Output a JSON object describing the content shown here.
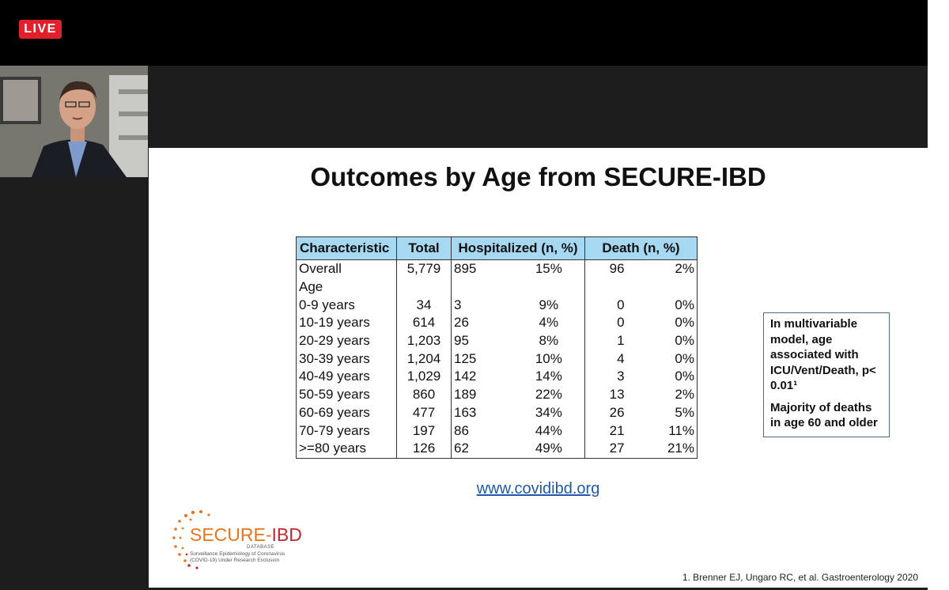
{
  "live_badge": "LIVE",
  "slide": {
    "title": "Outcomes by Age from SECURE-IBD",
    "table": {
      "headers": [
        "Characteristic",
        "Total",
        "Hospitalized (n, %)",
        "Death (n, %)"
      ],
      "rows": [
        [
          "Overall",
          "5,779",
          "895",
          "15%",
          "96",
          "2%"
        ],
        [
          "Age",
          "",
          "",
          "",
          "",
          ""
        ],
        [
          " 0-9 years",
          "34",
          "3",
          "9%",
          "0",
          "0%"
        ],
        [
          " 10-19 years",
          "614",
          "26",
          "4%",
          "0",
          "0%"
        ],
        [
          " 20-29 years",
          "1,203",
          "95",
          "8%",
          "1",
          "0%"
        ],
        [
          " 30-39 years",
          "1,204",
          "125",
          "10%",
          "4",
          "0%"
        ],
        [
          " 40-49 years",
          "1,029",
          "142",
          "14%",
          "3",
          "0%"
        ],
        [
          " 50-59 years",
          "860",
          "189",
          "22%",
          "13",
          "2%"
        ],
        [
          " 60-69 years",
          "477",
          "163",
          "34%",
          "26",
          "5%"
        ],
        [
          " 70-79 years",
          "197",
          "86",
          "44%",
          "21",
          "11%"
        ],
        [
          " >=80 years",
          "126",
          "62",
          "49%",
          "27",
          "21%"
        ]
      ]
    },
    "note": {
      "p1": "In multivariable model, age associated with ICU/Vent/Death, p< 0.01¹",
      "p2": "Majority of deaths in age 60 and older"
    },
    "link": "www.covidibd.org",
    "logo": {
      "name_a": "SECURE-",
      "name_b": "IBD",
      "sub": "DATABASE",
      "line1": "Surveillance Epidemiology of Coronavirus",
      "line2": "(COVID-19) Under Research Exclusion"
    },
    "citation": "1. Brenner EJ, Ungaro RC, et al. Gastroenterology 2020"
  },
  "colors": {
    "live": "#e0202a",
    "table_header": "#a6d8f2",
    "link": "#1f5aa6",
    "logo_orange": "#e8751a"
  }
}
